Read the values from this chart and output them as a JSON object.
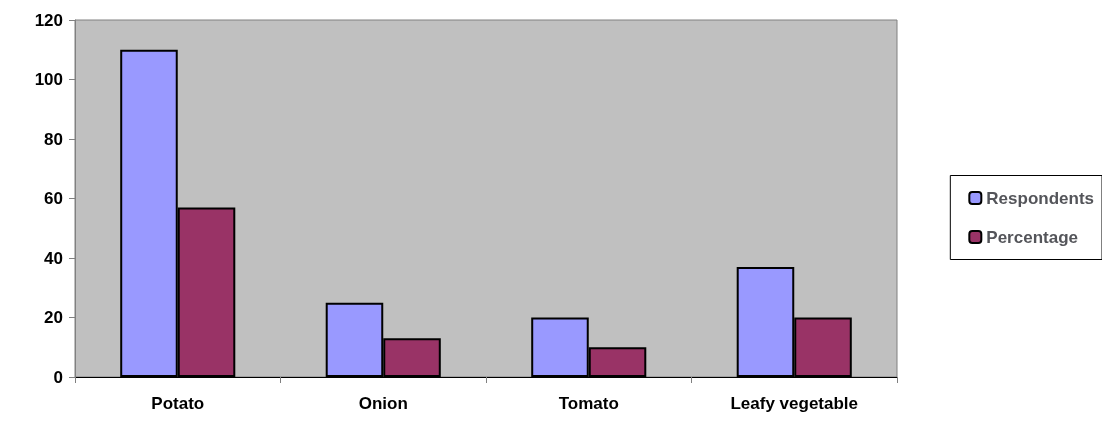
{
  "chart_data": {
    "type": "bar",
    "categories": [
      "Potato",
      "Onion",
      "Tomato",
      "Leafy vegetable"
    ],
    "series": [
      {
        "name": "Respondents",
        "color": "#9999ff",
        "values": [
          110,
          25,
          20,
          37
        ]
      },
      {
        "name": "Percentage",
        "color": "#993366",
        "values": [
          57,
          13,
          10,
          20
        ]
      }
    ],
    "ylim": [
      0,
      120
    ],
    "yticks": [
      0,
      20,
      40,
      60,
      80,
      100,
      120
    ],
    "grid": false,
    "legend": "right"
  }
}
